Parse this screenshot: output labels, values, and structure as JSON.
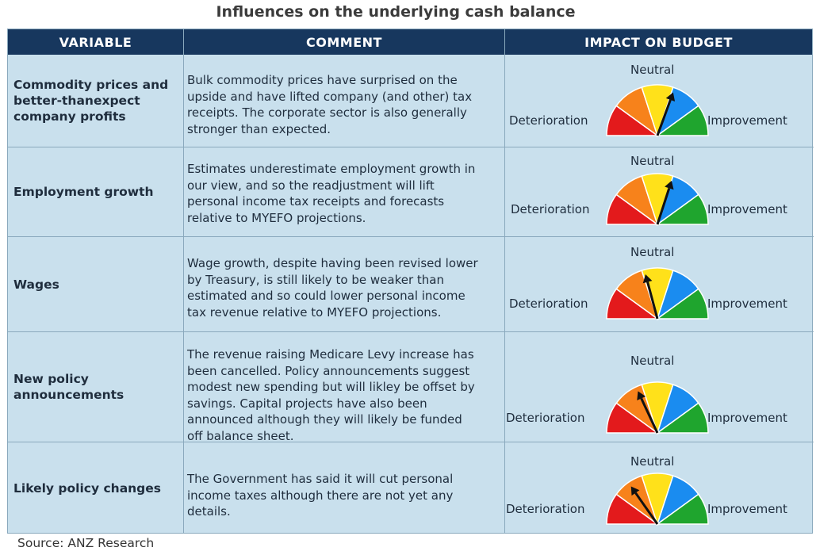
{
  "title": "Influences on the underlying cash balance",
  "headers": {
    "variable": "VARIABLE",
    "comment": "COMMENT",
    "impact": "IMPACT ON BUDGET"
  },
  "gauge_labels": {
    "left": "Deterioration",
    "top": "Neutral",
    "right": "Improvement"
  },
  "colors": {
    "header_bg": "#17375e",
    "cell_bg": "#c9e0ed",
    "segments": [
      "#e31a1c",
      "#f7821b",
      "#ffe11a",
      "#1a8cf0",
      "#1fa52e"
    ]
  },
  "rows": [
    {
      "variable": [
        "Commodity prices and",
        "better-thanexpect",
        "company profits"
      ],
      "comment": [
        "Bulk commodity prices have surprised on the",
        "upside and have lifted company (and other) tax",
        "receipts. The corporate sector is also generally",
        "stronger than expected."
      ],
      "needle_deg": 20
    },
    {
      "variable": [
        "Employment growth"
      ],
      "comment": [
        "Estimates underestimate employment growth in",
        "our view, and so the readjustment will lift",
        "personal income tax receipts and forecasts",
        "relative to MYEFO projections."
      ],
      "needle_deg": 18
    },
    {
      "variable": [
        "Wages"
      ],
      "comment": [
        "Wage growth, despite having been revised lower",
        "by Treasury, is still likely to be weaker than",
        "estimated and so could lower personal income",
        "tax revenue relative to MYEFO projections."
      ],
      "needle_deg": -15
    },
    {
      "variable": [
        "New policy",
        "announcements"
      ],
      "comment": [
        "The revenue raising Medicare Levy increase has",
        "been cancelled. Policy announcements suggest",
        "modest new spending but will likley be offset by",
        "savings. Capital projects have also been",
        "announced although they will likely be funded",
        "off balance sheet."
      ],
      "needle_deg": -25
    },
    {
      "variable": [
        "Likely policy changes"
      ],
      "comment": [
        "The Government has said it will cut personal",
        "income taxes although there are not yet any",
        "details."
      ],
      "needle_deg": -35
    }
  ],
  "source": "Source: ANZ Research"
}
